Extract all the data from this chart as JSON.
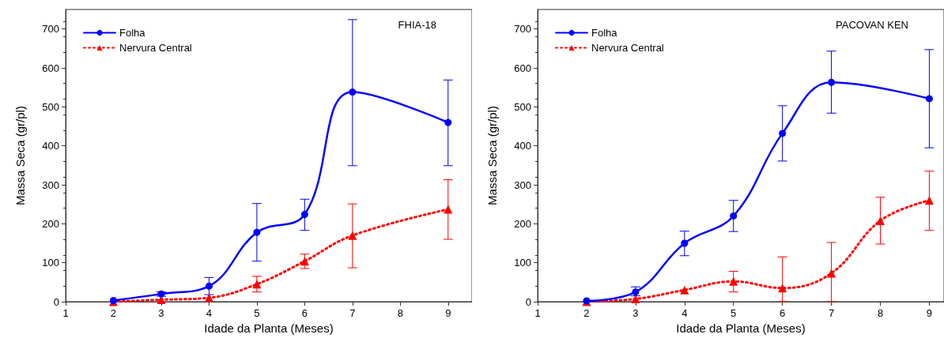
{
  "chart_data": [
    {
      "type": "line",
      "title": "FHIA-18",
      "xlabel": "Idade da Planta (Meses)",
      "ylabel": "Massa Seca (gr/pl)",
      "xlim": [
        1,
        9.5
      ],
      "xticks": [
        1,
        2,
        3,
        4,
        5,
        6,
        7,
        8,
        9
      ],
      "ylim": [
        0,
        750
      ],
      "yticks": [
        0,
        100,
        200,
        300,
        400,
        500,
        600,
        700
      ],
      "grid": false,
      "legend": "top left",
      "series": [
        {
          "name": "Folha",
          "color": "#0000ff",
          "marker": "circle",
          "line_style": "solid",
          "x": [
            2,
            3,
            4,
            5,
            6,
            7,
            9
          ],
          "values": [
            3,
            20,
            40,
            178,
            224,
            538,
            460
          ],
          "errors": [
            null,
            [
              14,
              25
            ],
            [
              18,
              62
            ],
            [
              104,
              252
            ],
            [
              183,
              263
            ],
            [
              349,
              724
            ],
            [
              349,
              569
            ]
          ]
        },
        {
          "name": "Nervura Central",
          "color": "#ff0000",
          "marker": "triangle",
          "line_style": "dotted",
          "x": [
            2,
            3,
            4,
            5,
            6,
            7,
            9
          ],
          "values": [
            0,
            5,
            10,
            45,
            104,
            170,
            237
          ],
          "errors": [
            null,
            null,
            null,
            [
              25,
              65
            ],
            [
              85,
              122
            ],
            [
              87,
              251
            ],
            [
              160,
              313
            ]
          ]
        }
      ]
    },
    {
      "type": "line",
      "title": "PACOVAN KEN",
      "xlabel": "Idade da Planta (Meses)",
      "ylabel": "Massa Seca (gr/pl)",
      "xlim": [
        1,
        9.3
      ],
      "xticks": [
        1,
        2,
        3,
        4,
        5,
        6,
        7,
        8,
        9
      ],
      "ylim": [
        0,
        750
      ],
      "yticks": [
        0,
        100,
        200,
        300,
        400,
        500,
        600,
        700
      ],
      "grid": false,
      "legend": "top left",
      "series": [
        {
          "name": "Folha",
          "color": "#0000ff",
          "marker": "circle",
          "line_style": "solid",
          "x": [
            2,
            3,
            4,
            5,
            6,
            7,
            9
          ],
          "values": [
            2,
            25,
            150,
            220,
            432,
            563,
            521
          ],
          "errors": [
            null,
            [
              15,
              38
            ],
            [
              118,
              181
            ],
            [
              180,
              260
            ],
            [
              361,
              503
            ],
            [
              484,
              643
            ],
            [
              395,
              647
            ]
          ]
        },
        {
          "name": "Nervura Central",
          "color": "#ff0000",
          "marker": "triangle",
          "line_style": "dotted",
          "x": [
            2,
            3,
            4,
            5,
            6,
            7,
            8,
            9
          ],
          "values": [
            0,
            7,
            30,
            52,
            35,
            73,
            208,
            260
          ],
          "errors": [
            null,
            null,
            null,
            [
              25,
              78
            ],
            [
              0,
              115
            ],
            [
              0,
              152
            ],
            [
              148,
              268
            ],
            [
              183,
              335
            ]
          ]
        }
      ]
    }
  ]
}
